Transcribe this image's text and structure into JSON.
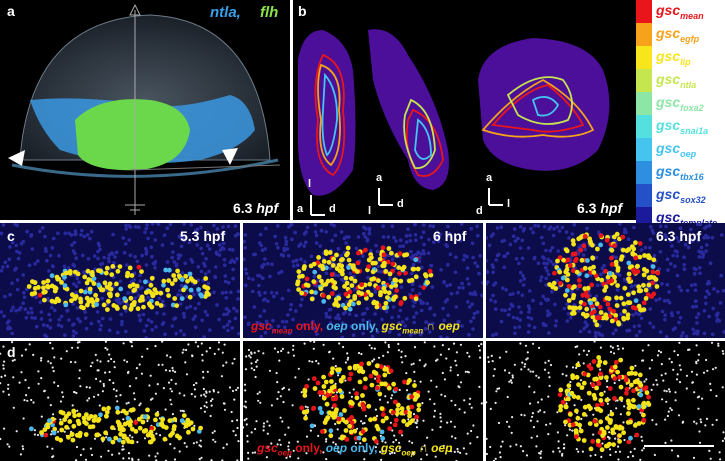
{
  "panel_a": {
    "label": "a",
    "gene1": "ntla,",
    "gene2": "flh",
    "time": "6.3",
    "time_unit": "hpf",
    "gene1_color": "#3aa0e8",
    "gene2_color": "#8ce64a"
  },
  "panel_b": {
    "label": "b",
    "time": "6.3",
    "time_unit": "hpf",
    "axes1": {
      "up": "l",
      "left": "a",
      "right": "d"
    },
    "axes2": {
      "up": "a",
      "left": "l",
      "right": "d"
    },
    "axes3": {
      "up": "a",
      "left": "d",
      "right": "l"
    }
  },
  "legend": [
    {
      "base": "gsc",
      "sub": "mean",
      "color": "#e8161b"
    },
    {
      "base": "gsc",
      "sub": "egfp",
      "color": "#f6a21a"
    },
    {
      "base": "gsc",
      "sub": "lip",
      "color": "#f9e51b"
    },
    {
      "base": "gsc",
      "sub": "ntla",
      "color": "#c6e64f"
    },
    {
      "base": "gsc",
      "sub": "foxa2",
      "color": "#8ce6a6"
    },
    {
      "base": "gsc",
      "sub": "snai1a",
      "color": "#55e0e0"
    },
    {
      "base": "gsc",
      "sub": "oep",
      "color": "#44c4ef"
    },
    {
      "base": "gsc",
      "sub": "tbx16",
      "color": "#2e8fe0"
    },
    {
      "base": "gsc",
      "sub": "sox32",
      "color": "#2450c8"
    },
    {
      "base": "gsc",
      "sub": "template",
      "color": "#1a1a9a"
    }
  ],
  "legend_strip_colors": [
    "#e8161b",
    "#f6a21a",
    "#f9e51b",
    "#c6e64f",
    "#8ce6a6",
    "#55e0e0",
    "#44c4ef",
    "#2e8fe0",
    "#2450c8",
    "#1a1a9a"
  ],
  "panel_c": {
    "label": "c",
    "times": [
      "5.3 hpf",
      "6 hpf",
      "6.3 hpf"
    ],
    "caption": {
      "part1_base": "gsc",
      "part1_sub": "mean",
      "part1_rest": " only, ",
      "part2": "oep",
      "part2_rest": " only, ",
      "part3_base": "gsc",
      "part3_sub": "mean",
      "part3_rest": " ∩ ",
      "part4": "oep"
    }
  },
  "panel_d": {
    "label": "d",
    "caption": {
      "part1_base": "gsc",
      "part1_sub": "oep",
      "part1_rest": " only, ",
      "part2": "oep",
      "part2_rest": " only, ",
      "part3_base": "gsc",
      "part3_sub": "oep",
      "part3_rest": " ∩ ",
      "part4": "oep"
    }
  },
  "colors": {
    "red": "#e8161b",
    "yellow": "#f5e31a",
    "blue": "#4ab8ec",
    "navy_bg": "#0c0c4a",
    "purple": "#4b0f9a"
  }
}
